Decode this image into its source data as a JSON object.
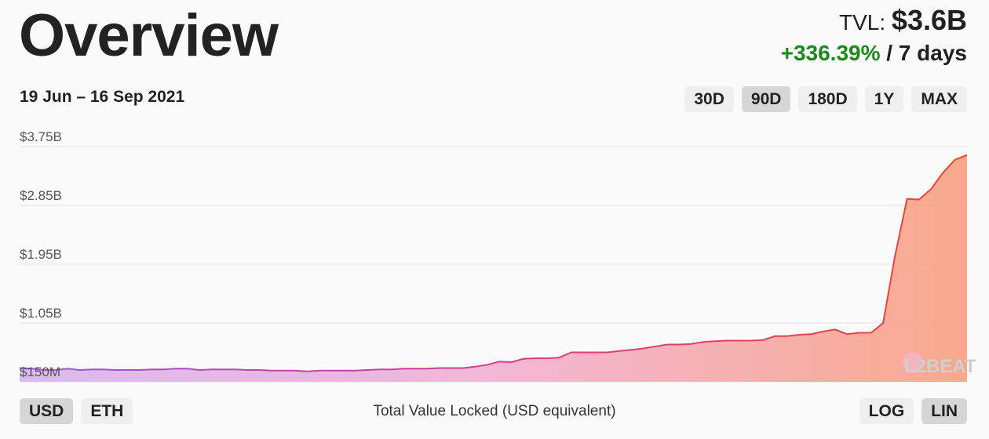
{
  "header": {
    "title": "Overview",
    "tvl_label": "TVL:",
    "tvl_value": "$3.6B",
    "change": "+336.39%",
    "change_period": "/ 7 days"
  },
  "date_range": "19 Jun – 16 Sep 2021",
  "range_buttons": [
    {
      "label": "30D",
      "active": false
    },
    {
      "label": "90D",
      "active": true
    },
    {
      "label": "180D",
      "active": false
    },
    {
      "label": "1Y",
      "active": false
    },
    {
      "label": "MAX",
      "active": false
    }
  ],
  "currency_buttons": [
    {
      "label": "USD",
      "active": true
    },
    {
      "label": "ETH",
      "active": false
    }
  ],
  "scale_buttons": [
    {
      "label": "LOG",
      "active": false
    },
    {
      "label": "LIN",
      "active": true
    }
  ],
  "caption": "Total Value Locked (USD equivalent)",
  "watermark": "L2BEAT",
  "colors": {
    "line_start": "#9a55d6",
    "line_mid": "#d63c8c",
    "line_end": "#e8472e",
    "fill_start": "#d6b4ee",
    "fill_mid": "#f2b0d2",
    "fill_end": "#f8a080",
    "positive": "#1b8a1b"
  },
  "chart_data": {
    "type": "area",
    "xlabel": "",
    "ylabel": "",
    "ylim": [
      150000000,
      3750000000
    ],
    "y_ticks": [
      150000000,
      1050000000,
      1950000000,
      2850000000,
      3750000000
    ],
    "y_tick_labels": [
      "$150M",
      "$1.05B",
      "$1.95B",
      "$2.85B",
      "$3.75B"
    ],
    "grid": true,
    "series": [
      {
        "values": [
          0.36,
          0.35,
          0.33,
          0.33,
          0.35,
          0.33,
          0.34,
          0.34,
          0.33,
          0.33,
          0.33,
          0.34,
          0.34,
          0.35,
          0.35,
          0.33,
          0.34,
          0.34,
          0.34,
          0.33,
          0.33,
          0.32,
          0.32,
          0.32,
          0.31,
          0.32,
          0.32,
          0.32,
          0.32,
          0.33,
          0.34,
          0.34,
          0.35,
          0.35,
          0.35,
          0.36,
          0.36,
          0.36,
          0.38,
          0.41,
          0.46,
          0.45,
          0.5,
          0.51,
          0.51,
          0.52,
          0.6,
          0.6,
          0.6,
          0.6,
          0.62,
          0.64,
          0.66,
          0.69,
          0.72,
          0.72,
          0.73,
          0.76,
          0.77,
          0.78,
          0.78,
          0.78,
          0.79,
          0.85,
          0.85,
          0.87,
          0.88,
          0.92,
          0.95,
          0.88,
          0.9,
          0.9,
          1.05,
          2.08,
          2.95,
          2.94,
          3.1,
          3.35,
          3.55,
          3.62
        ]
      }
    ]
  }
}
